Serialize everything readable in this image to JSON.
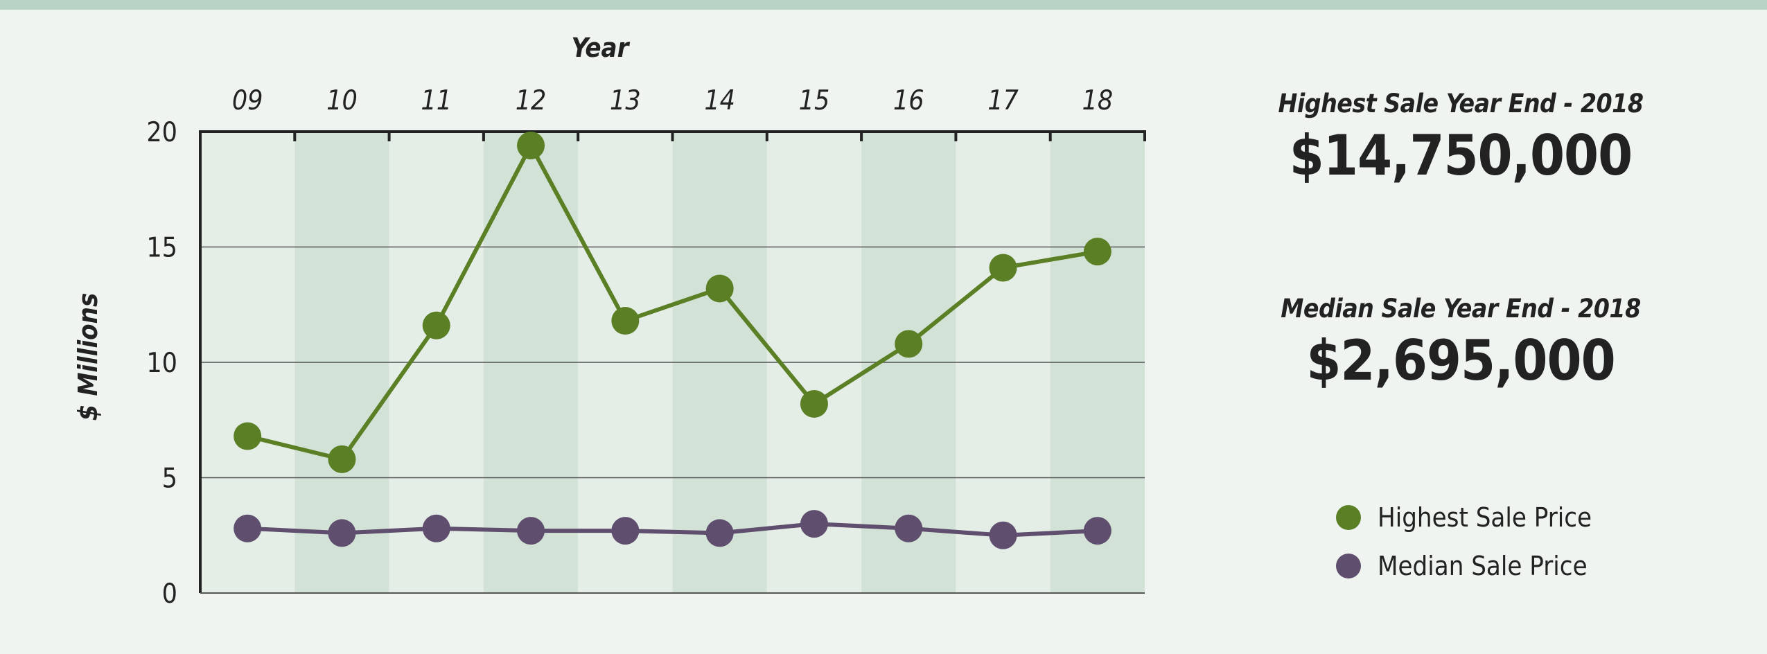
{
  "chart_data": {
    "type": "line",
    "xlabel": "Year",
    "ylabel": "$ Millions",
    "categories": [
      "09",
      "10",
      "11",
      "12",
      "13",
      "14",
      "15",
      "16",
      "17",
      "18"
    ],
    "ylim": [
      0,
      20
    ],
    "yticks": [
      0,
      5,
      10,
      15,
      20
    ],
    "grid": "horizontal",
    "legend_position": "right",
    "series": [
      {
        "name": "Highest Sale Price",
        "color": "#5a7f24",
        "values": [
          6.8,
          5.8,
          11.6,
          19.4,
          11.8,
          13.2,
          8.2,
          10.8,
          14.1,
          14.8
        ]
      },
      {
        "name": "Median Sale Price",
        "color": "#5f4e6e",
        "values": [
          2.8,
          2.6,
          2.8,
          2.7,
          2.7,
          2.6,
          3.0,
          2.8,
          2.5,
          2.7
        ]
      }
    ]
  },
  "stats": {
    "highest_label": "Highest Sale Year End - 2018",
    "highest_value": "$14,750,000",
    "median_label": "Median Sale Year End - 2018",
    "median_value": "$2,695,000"
  },
  "colors": {
    "band_light": "#e4ede6",
    "band_dark": "#d3e2d7",
    "background": "#eff4f0",
    "top_bar": "#b9d4c4"
  }
}
